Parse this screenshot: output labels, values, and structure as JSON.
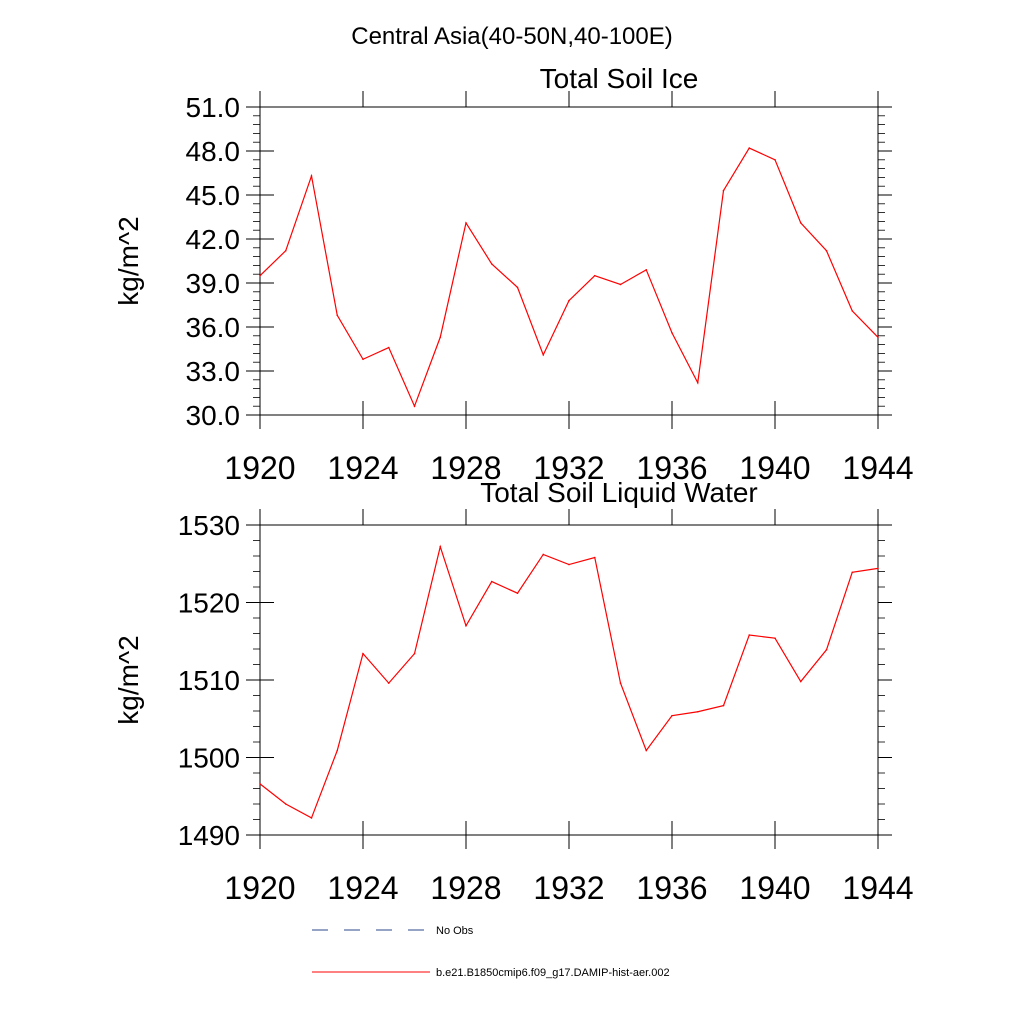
{
  "figure": {
    "main_title": "Central Asia(40-50N,40-100E)"
  },
  "chart_data": [
    {
      "type": "line",
      "title": "Total Soil Ice",
      "ylabel": "kg/m^2",
      "xlabel": "",
      "xlim": [
        1920,
        1944
      ],
      "ylim": [
        30,
        51
      ],
      "x_ticks": [
        1920,
        1924,
        1928,
        1932,
        1936,
        1940,
        1944
      ],
      "x_tick_labels": [
        "1920",
        "1924",
        "1928",
        "1932",
        "1936",
        "1940",
        "1944"
      ],
      "y_ticks": [
        30,
        33,
        36,
        39,
        42,
        45,
        48,
        51
      ],
      "y_tick_labels": [
        "30.0",
        "33.0",
        "36.0",
        "39.0",
        "42.0",
        "45.0",
        "48.0",
        "51.0"
      ],
      "y_minor_step": 0.6,
      "grid": false,
      "series": [
        {
          "name": "b.e21.B1850cmip6.f09_g17.DAMIP-hist-aer.002",
          "color": "#ff0000",
          "x": [
            1920,
            1921,
            1922,
            1923,
            1924,
            1925,
            1926,
            1927,
            1928,
            1929,
            1930,
            1931,
            1932,
            1933,
            1934,
            1935,
            1936,
            1937,
            1938,
            1939,
            1940,
            1941,
            1942,
            1943,
            1944
          ],
          "values": [
            39.5,
            41.2,
            46.3,
            36.8,
            33.8,
            34.6,
            30.6,
            35.3,
            43.1,
            40.3,
            38.7,
            34.1,
            37.8,
            39.5,
            38.9,
            39.9,
            35.6,
            32.2,
            45.3,
            48.2,
            47.4,
            43.1,
            41.2,
            37.1,
            35.3
          ]
        }
      ]
    },
    {
      "type": "line",
      "title": "Total Soil Liquid Water",
      "ylabel": "kg/m^2",
      "xlabel": "",
      "xlim": [
        1920,
        1944
      ],
      "ylim": [
        1490,
        1530
      ],
      "x_ticks": [
        1920,
        1924,
        1928,
        1932,
        1936,
        1940,
        1944
      ],
      "x_tick_labels": [
        "1920",
        "1924",
        "1928",
        "1932",
        "1936",
        "1940",
        "1944"
      ],
      "y_ticks": [
        1490,
        1500,
        1510,
        1520,
        1530
      ],
      "y_tick_labels": [
        "1490",
        "1500",
        "1510",
        "1520",
        "1530"
      ],
      "y_minor_step": 2,
      "grid": false,
      "series": [
        {
          "name": "b.e21.B1850cmip6.f09_g17.DAMIP-hist-aer.002",
          "color": "#ff0000",
          "x": [
            1920,
            1921,
            1922,
            1923,
            1924,
            1925,
            1926,
            1927,
            1928,
            1929,
            1930,
            1931,
            1932,
            1933,
            1934,
            1935,
            1936,
            1937,
            1938,
            1939,
            1940,
            1941,
            1942,
            1943,
            1944
          ],
          "values": [
            1496.6,
            1494.0,
            1492.2,
            1500.9,
            1513.4,
            1509.6,
            1513.4,
            1527.2,
            1517.0,
            1522.7,
            1521.2,
            1526.2,
            1524.9,
            1525.8,
            1509.6,
            1500.9,
            1505.4,
            1505.9,
            1506.7,
            1515.8,
            1515.4,
            1509.8,
            1513.9,
            1523.9,
            1524.4
          ]
        }
      ]
    }
  ],
  "legend": {
    "items": [
      {
        "label": "No Obs",
        "style": "dashed",
        "color": "#2b4a8a"
      },
      {
        "label": "b.e21.B1850cmip6.f09_g17.DAMIP-hist-aer.002",
        "style": "solid",
        "color": "#ff0000"
      }
    ]
  }
}
